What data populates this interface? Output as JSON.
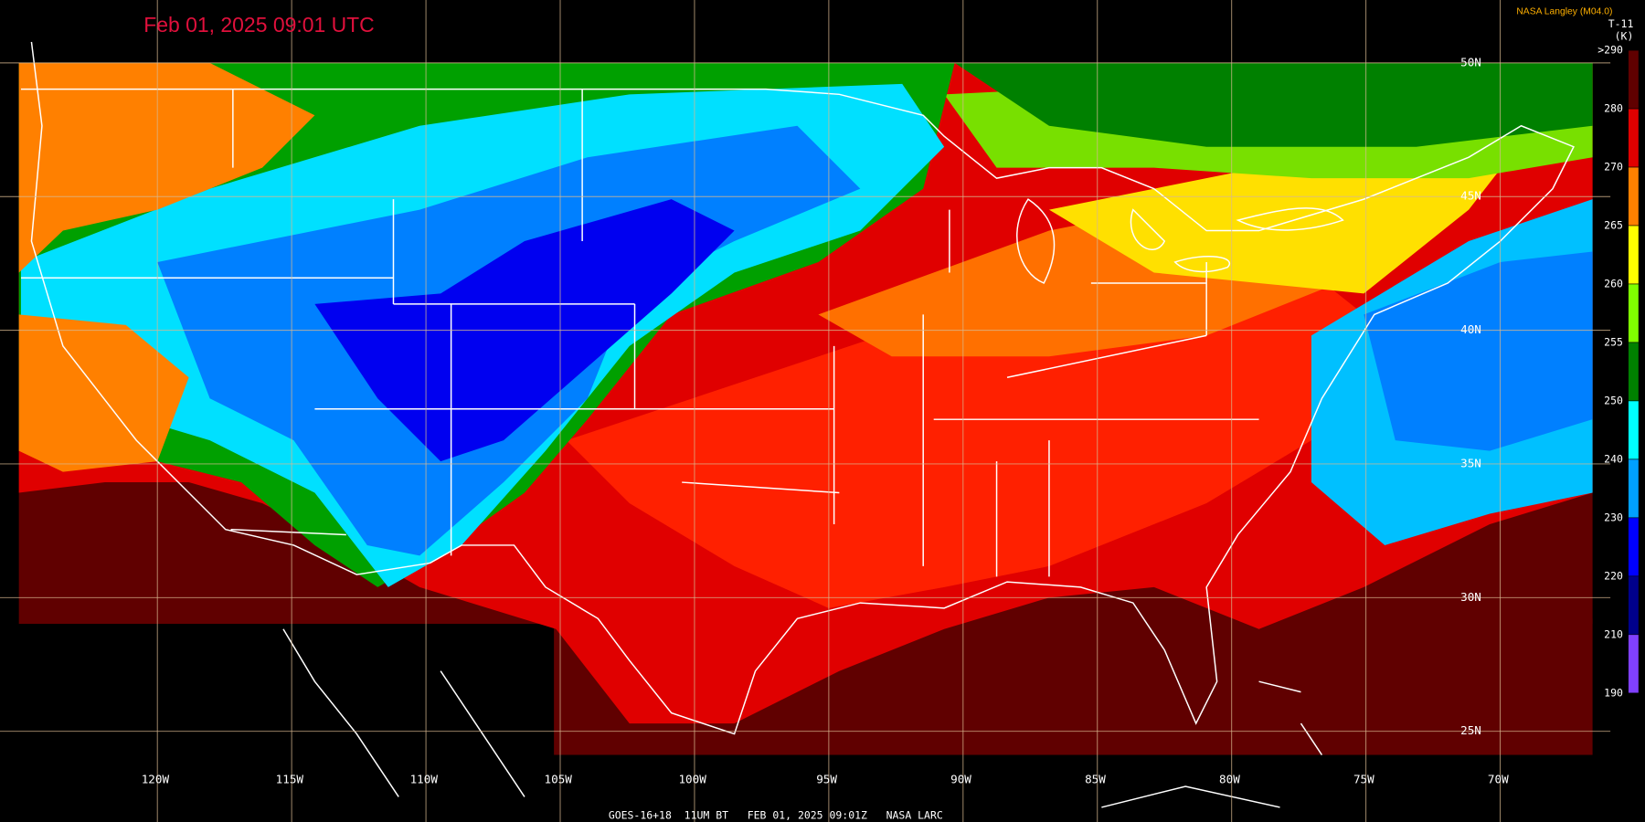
{
  "header": {
    "timestamp": "Feb 01, 2025 09:01 UTC",
    "source": "NASA Langley (M04.0)",
    "product": "T-11",
    "unit": "(K)"
  },
  "latitude_labels": [
    "50N",
    "45N",
    "40N",
    "35N",
    "30N",
    "25N"
  ],
  "longitude_labels": [
    "120W",
    "115W",
    "110W",
    "105W",
    "100W",
    "95W",
    "90W",
    "85W",
    "80W",
    "75W",
    "70W"
  ],
  "colorbar_labels": [
    ">290",
    "280",
    "270",
    "265",
    "260",
    "255",
    "250",
    "240",
    "230",
    "220",
    "210",
    "190"
  ],
  "footer": "GOES-16+18  11UM BT   FEB 01, 2025 09:01Z   NASA LARC"
}
